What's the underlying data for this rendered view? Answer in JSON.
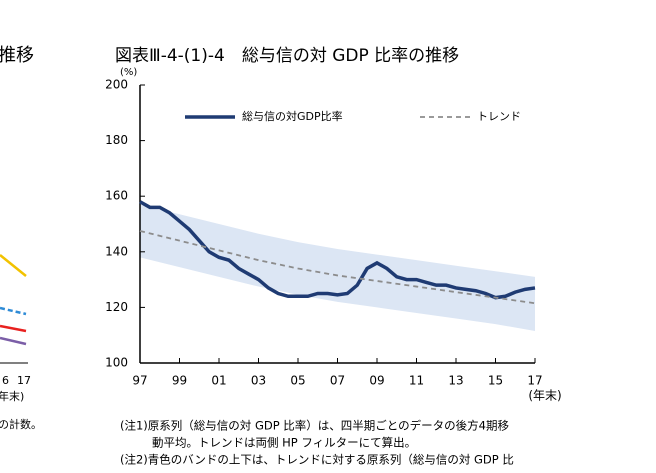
{
  "chart_data": {
    "type": "line",
    "title": "図表Ⅲ-4-(1)-4　総与信の対 GDP 比率の推移",
    "y_label": "(%)",
    "x_label": "(年末)",
    "xlim": [
      1997,
      2017
    ],
    "ylim": [
      100,
      200
    ],
    "xticks": [
      {
        "value": 1997,
        "label": "97"
      },
      {
        "value": 1999,
        "label": "99"
      },
      {
        "value": 2001,
        "label": "01"
      },
      {
        "value": 2003,
        "label": "03"
      },
      {
        "value": 2005,
        "label": "05"
      },
      {
        "value": 2007,
        "label": "07"
      },
      {
        "value": 2009,
        "label": "09"
      },
      {
        "value": 2011,
        "label": "11"
      },
      {
        "value": 2013,
        "label": "13"
      },
      {
        "value": 2015,
        "label": "15"
      },
      {
        "value": 2017,
        "label": "17"
      }
    ],
    "yticks": [
      100,
      120,
      140,
      160,
      180,
      200
    ],
    "grid": false,
    "series": [
      {
        "name": "総与信の対GDP比率",
        "color": "#1f3b73",
        "dashed": false,
        "x": [
          1997,
          1997.5,
          1998,
          1998.5,
          1999,
          1999.5,
          2000,
          2000.5,
          2001,
          2001.5,
          2002,
          2002.5,
          2003,
          2003.5,
          2004,
          2004.5,
          2005,
          2005.5,
          2006,
          2006.5,
          2007,
          2007.5,
          2008,
          2008.5,
          2009,
          2009.5,
          2010,
          2010.5,
          2011,
          2011.5,
          2012,
          2012.5,
          2013,
          2013.5,
          2014,
          2014.5,
          2015,
          2015.5,
          2016,
          2016.5,
          2017
        ],
        "values": [
          158,
          156,
          156,
          154,
          151,
          148,
          144,
          140,
          138,
          137,
          134,
          132,
          130,
          127,
          125,
          124,
          124,
          124,
          125,
          125,
          124.5,
          125,
          128,
          134,
          136,
          134,
          131,
          130,
          130,
          129,
          128,
          128,
          127,
          126.5,
          126,
          125,
          123.5,
          124,
          125.5,
          126.5,
          127
        ]
      },
      {
        "name": "トレンド",
        "color": "#8c8c8c",
        "dashed": true,
        "x": [
          1997,
          1999,
          2001,
          2003,
          2005,
          2007,
          2009,
          2011,
          2013,
          2015,
          2017
        ],
        "values": [
          147.5,
          144,
          140.5,
          137,
          134,
          131.5,
          129.5,
          127.5,
          125.5,
          123.5,
          121.5
        ]
      }
    ],
    "band": {
      "color": "#dce6f4",
      "x": [
        1997,
        1999,
        2001,
        2003,
        2005,
        2007,
        2009,
        2011,
        2013,
        2015,
        2017
      ],
      "upper": [
        157,
        153.5,
        150,
        146.5,
        143.5,
        141,
        139,
        137,
        135,
        133,
        131
      ],
      "lower": [
        138,
        134.5,
        131,
        127.5,
        124.5,
        122,
        120,
        118,
        116,
        114,
        111.5
      ]
    },
    "notes": [
      "(注1)原系列（総与信の対 GDP 比率）は、四半期ごとのデータの後方4期移",
      "動平均。トレンドは両側 HP フィルターにて算出。",
      "(注2)青色のバンドの上下は、トレンドに対する原系列（総与信の対 GDP 比"
    ]
  },
  "left_fragment": {
    "title": "推移",
    "ticks": [
      "6",
      "17"
    ],
    "x_label": "年末)",
    "note": "の計数。"
  }
}
